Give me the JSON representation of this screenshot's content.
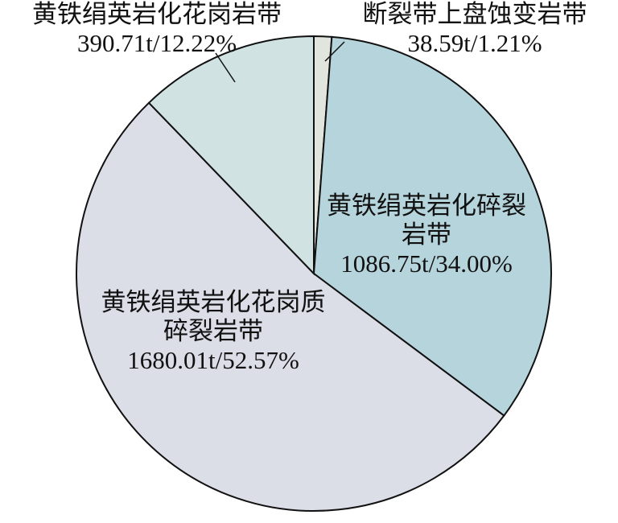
{
  "chart_data": {
    "type": "pie",
    "categories": [
      "断裂带上盘蚀变岩带",
      "黄铁绢英岩化碎裂岩带",
      "黄铁绢英岩化花岗质碎裂岩带",
      "黄铁绢英岩化花岗岩带"
    ],
    "values": [
      38.59,
      1086.75,
      1680.01,
      390.71
    ],
    "value_labels": [
      "38.59t/1.21%",
      "1086.75t/34.00%",
      "1680.01t/52.57%",
      "390.71t/12.22%"
    ],
    "colors": [
      "#e2e4de",
      "#b6d4db",
      "#dbdde7",
      "#d0e2e2"
    ]
  }
}
